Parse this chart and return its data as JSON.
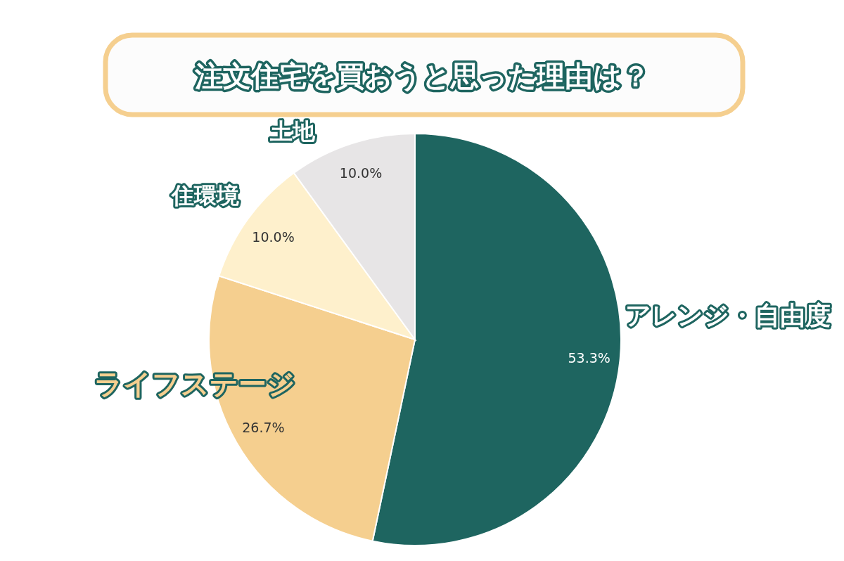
{
  "chart_data": {
    "type": "pie",
    "title": "注文住宅を買おうと思った理由は？",
    "categories": [
      "アレンジ・自由度",
      "ライフステージ",
      "住環境",
      "土地"
    ],
    "values": [
      53.3,
      26.7,
      10.0,
      10.0
    ],
    "colors": [
      "#1e6560",
      "#f5cf8f",
      "#fef0cc",
      "#e7e5e6"
    ],
    "value_labels": [
      "53.3%",
      "26.7%",
      "10.0%",
      "10.0%"
    ]
  }
}
